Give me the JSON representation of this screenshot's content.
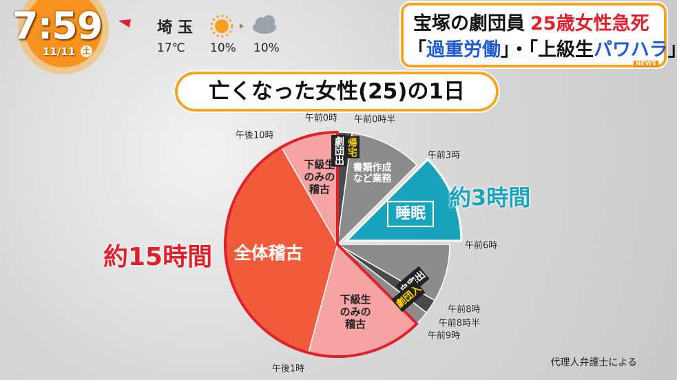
{
  "header": {
    "time": "7:59",
    "date": "11/11",
    "weekday": "土",
    "prefecture": "埼玉",
    "temperature": "17℃",
    "rain_am": "10%",
    "rain_pm": "10%"
  },
  "headline": {
    "line1": [
      "宝塚の劇団員",
      "25歳女性急死"
    ],
    "line2": [
      "「",
      "過重労働",
      "」・「上級生",
      "パワハラ",
      "」"
    ],
    "tag": "NEWS"
  },
  "chart_data": {
    "type": "pie",
    "title": "亡くなった女性(25)の1日",
    "categories": [
      null,
      "書類作成など業務",
      "睡眠",
      null,
      null,
      null,
      "下級生のみの稽古",
      "全体稽古",
      "下級生のみの稽古"
    ],
    "values": [
      0.5,
      2.5,
      3,
      2,
      0.5,
      0.5,
      4,
      9,
      2
    ],
    "colors": [
      "#4a4a4a",
      "#8c8c8c",
      "#1aa3bd",
      "#8c8c8c",
      "#4a4a4a",
      "#8c8c8c",
      "#f5a3a3",
      "#f25a3c",
      "#f5a3a3"
    ],
    "exploded": [
      2
    ],
    "outlined": [
      6,
      7,
      8
    ],
    "outline_color": "#e0202a",
    "xlim": [
      0,
      24
    ],
    "xticks": [
      {
        "value": 0,
        "label": "午前0時"
      },
      {
        "value": 0.5,
        "label": "午前0時半"
      },
      {
        "value": 3,
        "label": "午前3時"
      },
      {
        "value": 6,
        "label": "午前6時"
      },
      {
        "value": 8,
        "label": "午前8時"
      },
      {
        "value": 8.5,
        "label": "午前8時半"
      },
      {
        "value": 9,
        "label": "午前9時"
      },
      {
        "value": 13,
        "label": "午後1時"
      },
      {
        "value": 22,
        "label": "午後10時"
      }
    ],
    "annotations": [
      "約3時間",
      "約15時間"
    ],
    "events": [
      "劇団出",
      "帰宅",
      "自宅出",
      "劇団入"
    ],
    "source": "代理人弁護士による"
  }
}
